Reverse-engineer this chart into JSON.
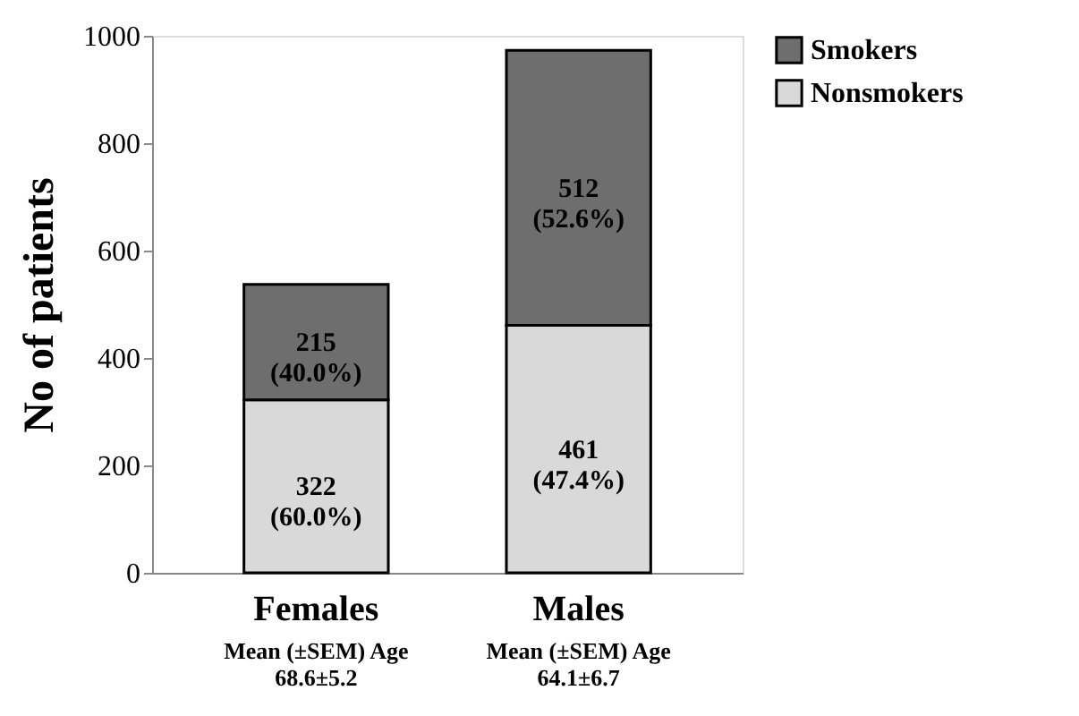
{
  "chart_data": {
    "type": "bar",
    "stacked": true,
    "ylabel": "No of patients",
    "categories": [
      "Females",
      "Males"
    ],
    "series": [
      {
        "name": "Nonsmokers",
        "color": "#d9d9d9",
        "values": [
          322,
          461
        ],
        "value_labels": [
          "322 (60.0%)",
          "461 (47.4%)"
        ]
      },
      {
        "name": "Smokers",
        "color": "#6e6e6e",
        "values": [
          215,
          512
        ],
        "value_labels": [
          "215 (40.0%)",
          "512 (52.6%)"
        ]
      }
    ],
    "ylim": [
      0,
      1000
    ],
    "yticks": [
      0,
      200,
      400,
      600,
      800,
      1000
    ],
    "grid": false,
    "legend": "right",
    "annotations": [
      "Mean (±SEM) Age\n68.6±5.2",
      "Mean (±SEM) Age\n64.1±6.7"
    ]
  }
}
